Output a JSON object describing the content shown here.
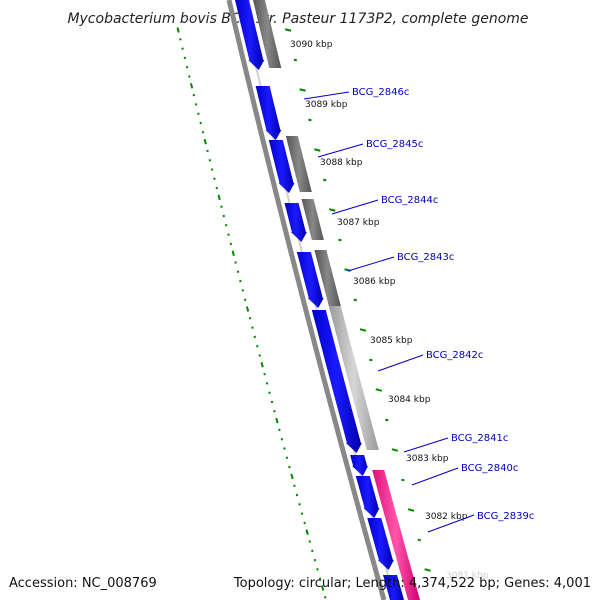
{
  "title": "Mycobacterium bovis BCG str. Pasteur 1173P2, complete genome",
  "footer": {
    "accession": "Accession: NC_008769",
    "topology": "Topology: circular; Length: 4,374,522 bp; Genes: 4,001"
  },
  "kbp_labels": [
    "3090 kbp",
    "3089 kbp",
    "3088 kbp",
    "3087 kbp",
    "3086 kbp",
    "3085 kbp",
    "3084 kbp",
    "3083 kbp",
    "3082 kbp",
    "3081 kbp"
  ],
  "gene_labels": [
    "BCG_2846c",
    "BCG_2845c",
    "BCG_2844c",
    "BCG_2843c",
    "BCG_2842c",
    "BCG_2841c",
    "BCG_2840c",
    "BCG_2839c"
  ],
  "colors": {
    "gene": "#0000ff",
    "feature_gray_dark": "#666666",
    "feature_gray_light": "#bbbbbb",
    "feature_pink": "#ff1493",
    "backbone": "#888888",
    "tick": "#008800",
    "label": "#0000bb"
  }
}
